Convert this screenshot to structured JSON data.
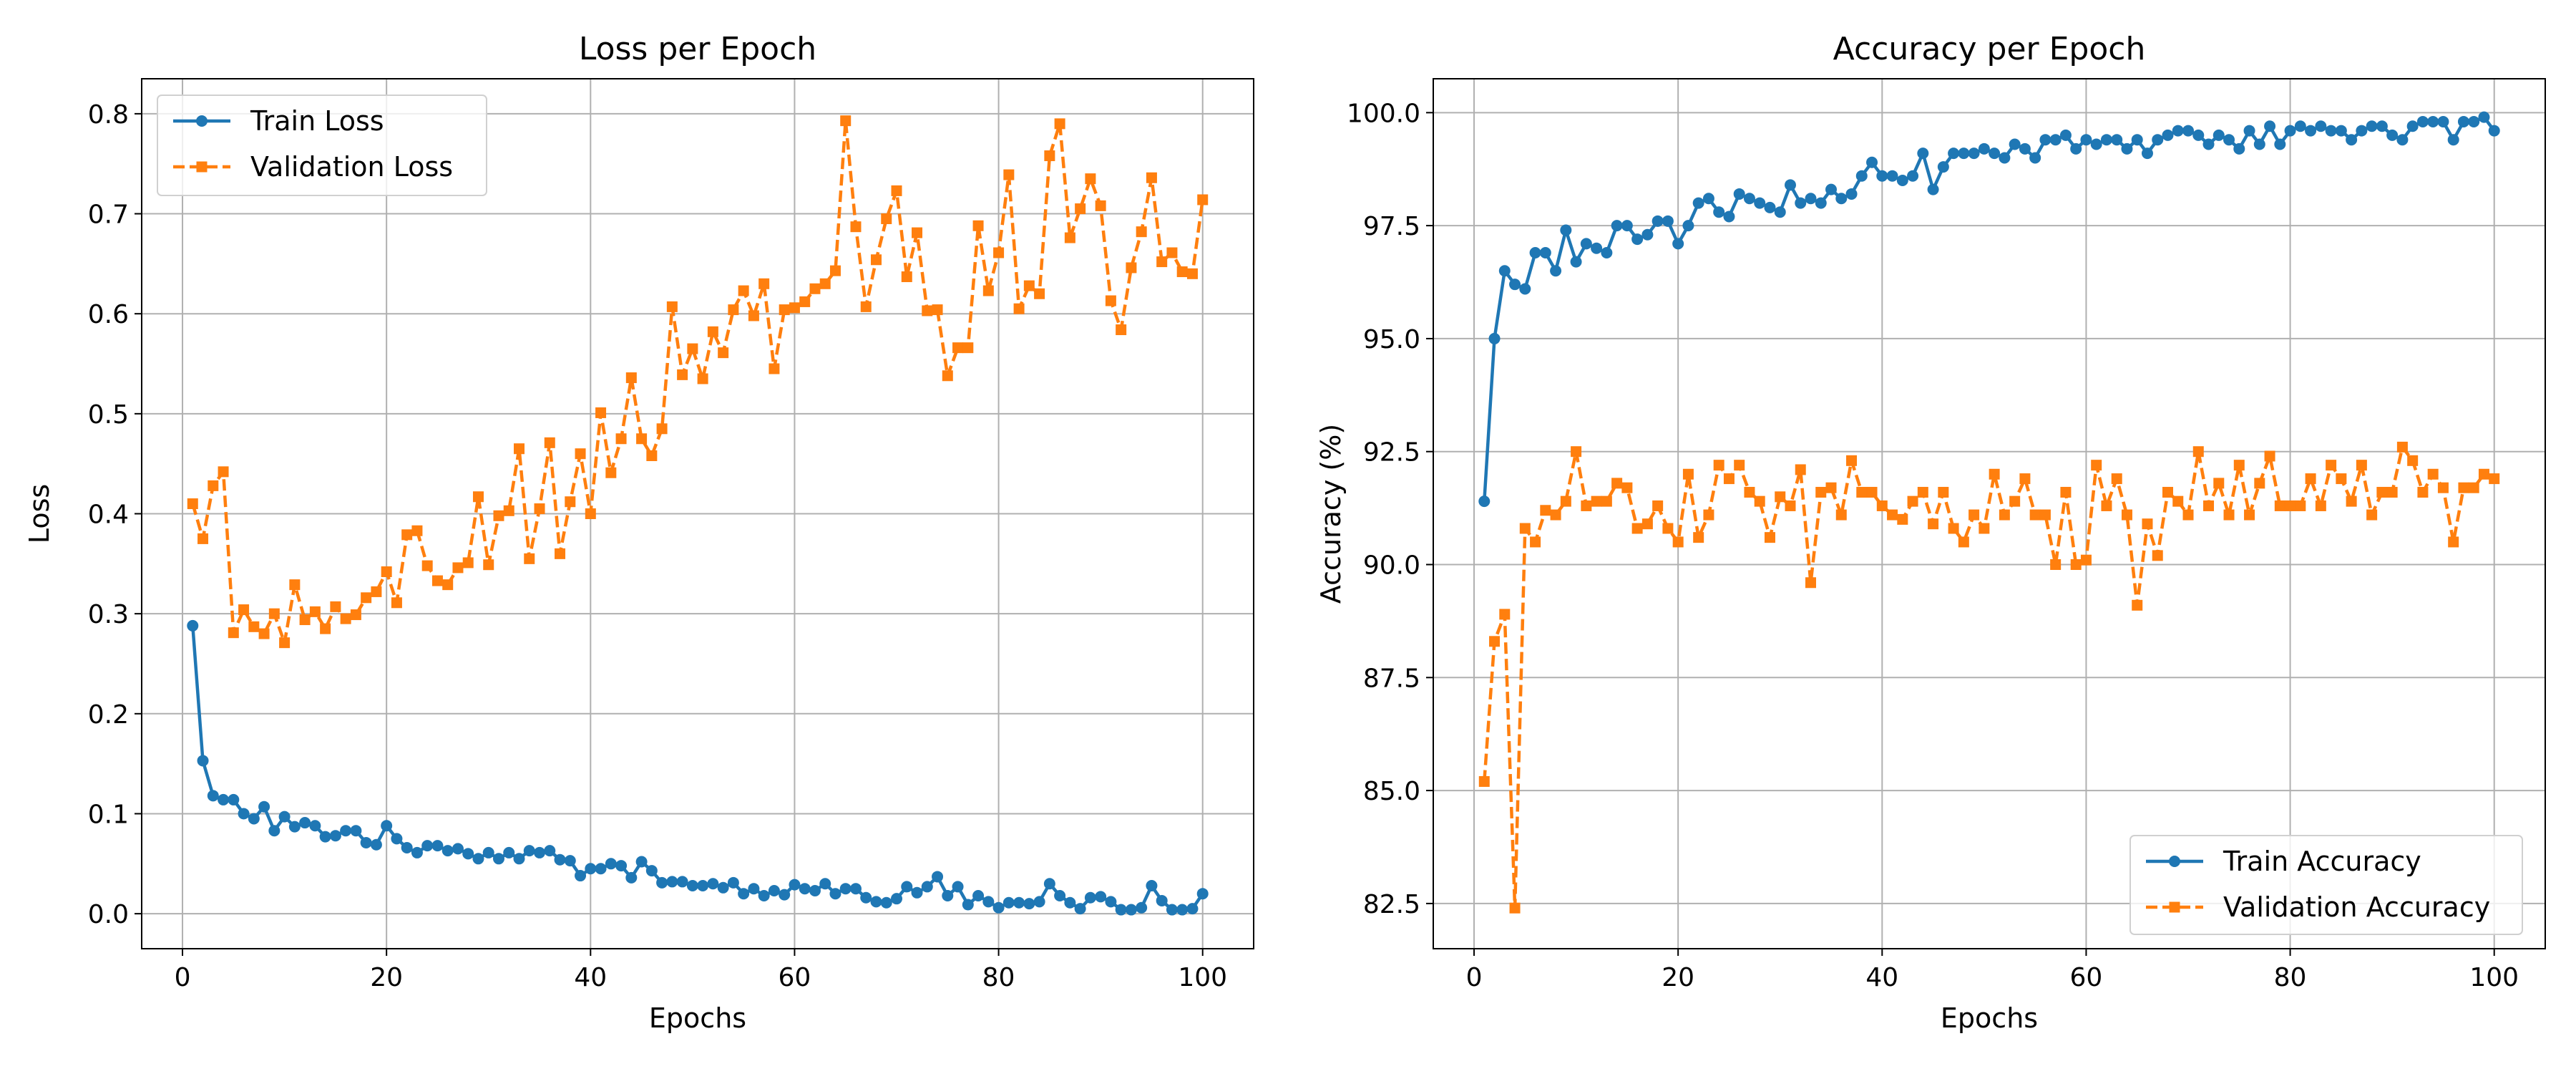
{
  "figure": {
    "background": "#ffffff"
  },
  "colors": {
    "train": "#1f77b4",
    "validation": "#ff7f0e",
    "grid": "#b0b0b0"
  },
  "chart_data": [
    {
      "type": "line",
      "title": "Loss per Epoch",
      "xlabel": "Epochs",
      "ylabel": "Loss",
      "xlim": [
        -4,
        105
      ],
      "ylim": [
        -0.035,
        0.835
      ],
      "xticks": [
        0,
        20,
        40,
        60,
        80,
        100
      ],
      "yticks": [
        0.0,
        0.1,
        0.2,
        0.3,
        0.4,
        0.5,
        0.6,
        0.7,
        0.8
      ],
      "ytick_labels": [
        "0.0",
        "0.1",
        "0.2",
        "0.3",
        "0.4",
        "0.5",
        "0.6",
        "0.7",
        "0.8"
      ],
      "grid": true,
      "legend": "upper-left",
      "series": [
        {
          "name": "Train Loss",
          "color": "#1f77b4",
          "style": "solid",
          "marker": "circle",
          "values": [
            0.288,
            0.153,
            0.118,
            0.114,
            0.114,
            0.1,
            0.095,
            0.107,
            0.083,
            0.097,
            0.087,
            0.091,
            0.088,
            0.077,
            0.078,
            0.083,
            0.083,
            0.071,
            0.069,
            0.088,
            0.075,
            0.066,
            0.061,
            0.068,
            0.068,
            0.063,
            0.065,
            0.06,
            0.055,
            0.061,
            0.055,
            0.061,
            0.055,
            0.063,
            0.061,
            0.063,
            0.054,
            0.053,
            0.038,
            0.045,
            0.045,
            0.05,
            0.048,
            0.036,
            0.052,
            0.043,
            0.031,
            0.032,
            0.032,
            0.028,
            0.028,
            0.03,
            0.026,
            0.031,
            0.02,
            0.025,
            0.018,
            0.023,
            0.019,
            0.029,
            0.025,
            0.023,
            0.03,
            0.02,
            0.025,
            0.025,
            0.016,
            0.012,
            0.011,
            0.015,
            0.027,
            0.021,
            0.027,
            0.037,
            0.018,
            0.027,
            0.009,
            0.018,
            0.012,
            0.006,
            0.011,
            0.011,
            0.01,
            0.012,
            0.03,
            0.018,
            0.011,
            0.005,
            0.016,
            0.017,
            0.012,
            0.004,
            0.004,
            0.006,
            0.028,
            0.013,
            0.004,
            0.004,
            0.005,
            0.02
          ]
        },
        {
          "name": "Validation Loss",
          "color": "#ff7f0e",
          "style": "dashed",
          "marker": "square",
          "values": [
            0.41,
            0.375,
            0.428,
            0.442,
            0.281,
            0.304,
            0.287,
            0.28,
            0.3,
            0.271,
            0.329,
            0.294,
            0.302,
            0.285,
            0.307,
            0.295,
            0.299,
            0.316,
            0.322,
            0.342,
            0.311,
            0.379,
            0.383,
            0.348,
            0.333,
            0.329,
            0.346,
            0.351,
            0.417,
            0.349,
            0.398,
            0.403,
            0.465,
            0.355,
            0.405,
            0.471,
            0.36,
            0.412,
            0.46,
            0.4,
            0.501,
            0.441,
            0.475,
            0.536,
            0.475,
            0.458,
            0.485,
            0.607,
            0.539,
            0.565,
            0.535,
            0.582,
            0.561,
            0.604,
            0.623,
            0.598,
            0.63,
            0.545,
            0.604,
            0.606,
            0.612,
            0.625,
            0.63,
            0.643,
            0.793,
            0.687,
            0.607,
            0.654,
            0.695,
            0.723,
            0.637,
            0.681,
            0.603,
            0.604,
            0.538,
            0.566,
            0.566,
            0.688,
            0.623,
            0.661,
            0.739,
            0.605,
            0.628,
            0.62,
            0.758,
            0.79,
            0.676,
            0.705,
            0.735,
            0.708,
            0.613,
            0.584,
            0.646,
            0.682,
            0.736,
            0.652,
            0.661,
            0.642,
            0.64,
            0.714
          ]
        }
      ]
    },
    {
      "type": "line",
      "title": "Accuracy per Epoch",
      "xlabel": "Epochs",
      "ylabel": "Accuracy (%)",
      "xlim": [
        -4,
        105
      ],
      "ylim": [
        81.5,
        100.75
      ],
      "xticks": [
        0,
        20,
        40,
        60,
        80,
        100
      ],
      "yticks": [
        82.5,
        85.0,
        87.5,
        90.0,
        92.5,
        95.0,
        97.5,
        100.0
      ],
      "ytick_labels": [
        "82.5",
        "85.0",
        "87.5",
        "90.0",
        "92.5",
        "95.0",
        "97.5",
        "100.0"
      ],
      "grid": true,
      "legend": "lower-right",
      "series": [
        {
          "name": "Train Accuracy",
          "color": "#1f77b4",
          "style": "solid",
          "marker": "circle",
          "values": [
            91.4,
            95.0,
            96.5,
            96.2,
            96.1,
            96.9,
            96.9,
            96.5,
            97.4,
            96.7,
            97.1,
            97.0,
            96.9,
            97.5,
            97.5,
            97.2,
            97.3,
            97.6,
            97.6,
            97.1,
            97.5,
            98.0,
            98.1,
            97.8,
            97.7,
            98.2,
            98.1,
            98.0,
            97.9,
            97.8,
            98.4,
            98.0,
            98.1,
            98.0,
            98.3,
            98.1,
            98.2,
            98.6,
            98.9,
            98.6,
            98.6,
            98.5,
            98.6,
            99.1,
            98.3,
            98.8,
            99.1,
            99.1,
            99.1,
            99.2,
            99.1,
            99.0,
            99.3,
            99.2,
            99.0,
            99.4,
            99.4,
            99.5,
            99.2,
            99.4,
            99.3,
            99.4,
            99.4,
            99.2,
            99.4,
            99.1,
            99.4,
            99.5,
            99.6,
            99.6,
            99.5,
            99.3,
            99.5,
            99.4,
            99.2,
            99.6,
            99.3,
            99.7,
            99.3,
            99.6,
            99.7,
            99.6,
            99.7,
            99.6,
            99.6,
            99.4,
            99.6,
            99.7,
            99.7,
            99.5,
            99.4,
            99.7,
            99.8,
            99.8,
            99.8,
            99.4,
            99.8,
            99.8,
            99.9,
            99.6
          ]
        },
        {
          "name": "Validation Accuracy",
          "color": "#ff7f0e",
          "style": "dashed",
          "marker": "square",
          "values": [
            85.2,
            88.3,
            88.9,
            82.4,
            90.8,
            90.5,
            91.2,
            91.1,
            91.4,
            92.5,
            91.3,
            91.4,
            91.4,
            91.8,
            91.7,
            90.8,
            90.9,
            91.3,
            90.8,
            90.5,
            92.0,
            90.6,
            91.1,
            92.2,
            91.9,
            92.2,
            91.6,
            91.4,
            90.6,
            91.5,
            91.3,
            92.1,
            89.6,
            91.6,
            91.7,
            91.1,
            92.3,
            91.6,
            91.6,
            91.3,
            91.1,
            91.0,
            91.4,
            91.6,
            90.9,
            91.6,
            90.8,
            90.5,
            91.1,
            90.8,
            92.0,
            91.1,
            91.4,
            91.9,
            91.1,
            91.1,
            90.0,
            91.6,
            90.0,
            90.1,
            92.2,
            91.3,
            91.9,
            91.1,
            89.1,
            90.9,
            90.2,
            91.6,
            91.4,
            91.1,
            92.5,
            91.3,
            91.8,
            91.1,
            92.2,
            91.1,
            91.8,
            92.4,
            91.3,
            91.3,
            91.3,
            91.9,
            91.3,
            92.2,
            91.9,
            91.4,
            92.2,
            91.1,
            91.6,
            91.6,
            92.6,
            92.3,
            91.6,
            92.0,
            91.7,
            90.5,
            91.7,
            91.7,
            92.0,
            91.9
          ]
        }
      ]
    }
  ]
}
